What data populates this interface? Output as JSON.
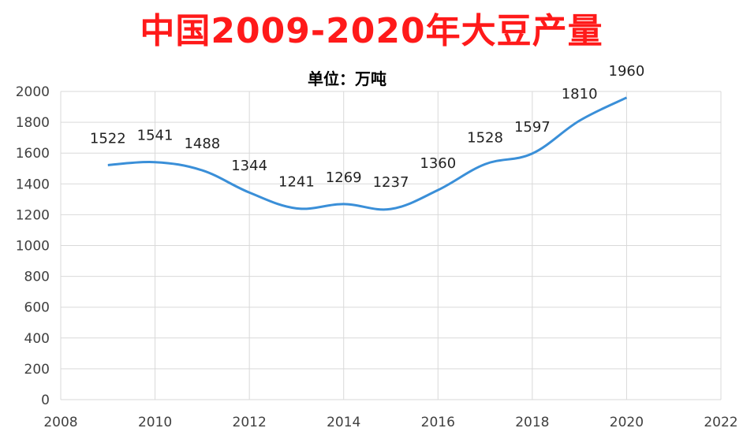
{
  "chart_data": {
    "type": "line",
    "title": "中国2009-2020年大豆产量",
    "subtitle": "单位：万吨",
    "x": [
      2009,
      2010,
      2011,
      2012,
      2013,
      2014,
      2015,
      2016,
      2017,
      2018,
      2019,
      2020
    ],
    "series": [
      {
        "values": [
          1522,
          1541,
          1488,
          1344,
          1241,
          1269,
          1237,
          1360,
          1528,
          1597,
          1810,
          1960
        ]
      }
    ],
    "xlim": [
      2008,
      2022
    ],
    "ylim": [
      0,
      2000
    ],
    "xticks": [
      2008,
      2010,
      2012,
      2014,
      2016,
      2018,
      2020,
      2022
    ],
    "yticks": [
      0,
      200,
      400,
      600,
      800,
      1000,
      1200,
      1400,
      1600,
      1800,
      2000
    ],
    "grid": true,
    "line_color": "#3a8fd8",
    "smooth": true
  }
}
